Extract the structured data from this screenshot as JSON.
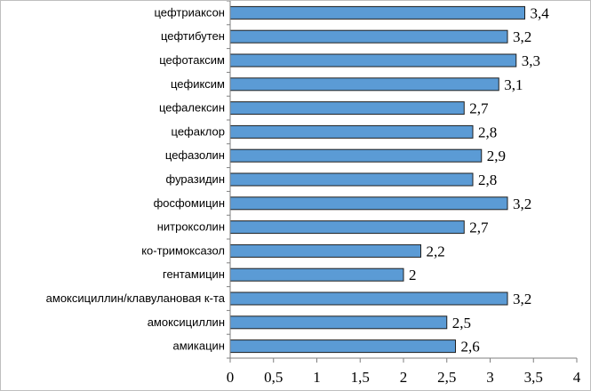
{
  "chart_data": {
    "type": "bar",
    "orientation": "horizontal",
    "title": "",
    "xlabel": "",
    "ylabel": "",
    "xlim": [
      0,
      4
    ],
    "x_ticks": [
      0,
      0.5,
      1,
      1.5,
      2,
      2.5,
      3,
      3.5,
      4
    ],
    "x_tick_labels": [
      "0",
      "0,5",
      "1",
      "1,5",
      "2",
      "2,5",
      "3",
      "3,5",
      "4"
    ],
    "grid": false,
    "legend": "none",
    "bar_color": "#5b9bd5",
    "bar_edge_color": "#1f1f1f",
    "categories": [
      "цефтриаксон",
      "цефтибутен",
      "цефотаксим",
      "цефиксим",
      "цефалексин",
      "цефаклор",
      "цефазолин",
      "фуразидин",
      "фосфомицин",
      "нитроксолин",
      "ко-тримоксазол",
      "гентамицин",
      "амоксициллин/клавулановая  к-та",
      "амоксициллин",
      "амикацин"
    ],
    "values": [
      3.4,
      3.2,
      3.3,
      3.1,
      2.7,
      2.8,
      2.9,
      2.8,
      3.2,
      2.7,
      2.2,
      2.0,
      3.2,
      2.5,
      2.6
    ],
    "data_labels": [
      "3,4",
      "3,2",
      "3,3",
      "3,1",
      "2,7",
      "2,8",
      "2,9",
      "2,8",
      "3,2",
      "2,7",
      "2,2",
      "2",
      "3,2",
      "2,5",
      "2,6"
    ]
  }
}
